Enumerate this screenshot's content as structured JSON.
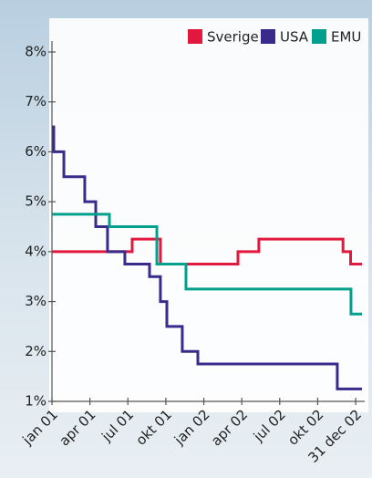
{
  "chart_data": {
    "type": "step-line",
    "xlim": [
      0,
      24.5
    ],
    "xticks": [
      {
        "value": 0,
        "label": "jan 01"
      },
      {
        "value": 3,
        "label": "apr 01"
      },
      {
        "value": 6,
        "label": "jul 01"
      },
      {
        "value": 9,
        "label": "okt 01"
      },
      {
        "value": 12,
        "label": "jan 02"
      },
      {
        "value": 15,
        "label": "apr 02"
      },
      {
        "value": 18,
        "label": "jul 02"
      },
      {
        "value": 21,
        "label": "okt 02"
      },
      {
        "value": 24,
        "label": "31 dec 02"
      }
    ],
    "ylim": [
      1,
      8
    ],
    "yticks": [
      {
        "value": 1,
        "label": "1%"
      },
      {
        "value": 2,
        "label": "2%"
      },
      {
        "value": 3,
        "label": "3%"
      },
      {
        "value": 4,
        "label": "4%"
      },
      {
        "value": 5,
        "label": "5%"
      },
      {
        "value": 6,
        "label": "6%"
      },
      {
        "value": 7,
        "label": "7%"
      },
      {
        "value": 8,
        "label": "8%"
      }
    ],
    "legend": "top-right",
    "series": [
      {
        "name": "Sverige",
        "color": "#e3183f",
        "x": [
          0,
          6.34,
          8.57,
          14.7,
          16.35,
          23.0,
          23.6,
          24.5
        ],
        "values": [
          4,
          4.25,
          3.75,
          4,
          4.25,
          4,
          3.75,
          3.75
        ]
      },
      {
        "name": "USA",
        "color": "#3a2a8c",
        "x": [
          0,
          0.14,
          0.94,
          2.59,
          3.46,
          4.39,
          5.76,
          7.71,
          8.57,
          9.08,
          10.3,
          11.53,
          22.55,
          24.5
        ],
        "values": [
          6.5,
          6,
          5.5,
          5,
          4.5,
          4,
          3.75,
          3.5,
          3,
          2.5,
          2,
          1.75,
          1.25,
          1.25
        ]
      },
      {
        "name": "EMU",
        "color": "#00a08c",
        "x": [
          0,
          4.54,
          8.29,
          10.59,
          23.63,
          24.5
        ],
        "values": [
          4.75,
          4.5,
          3.75,
          3.25,
          2.75,
          2.75
        ]
      }
    ]
  }
}
